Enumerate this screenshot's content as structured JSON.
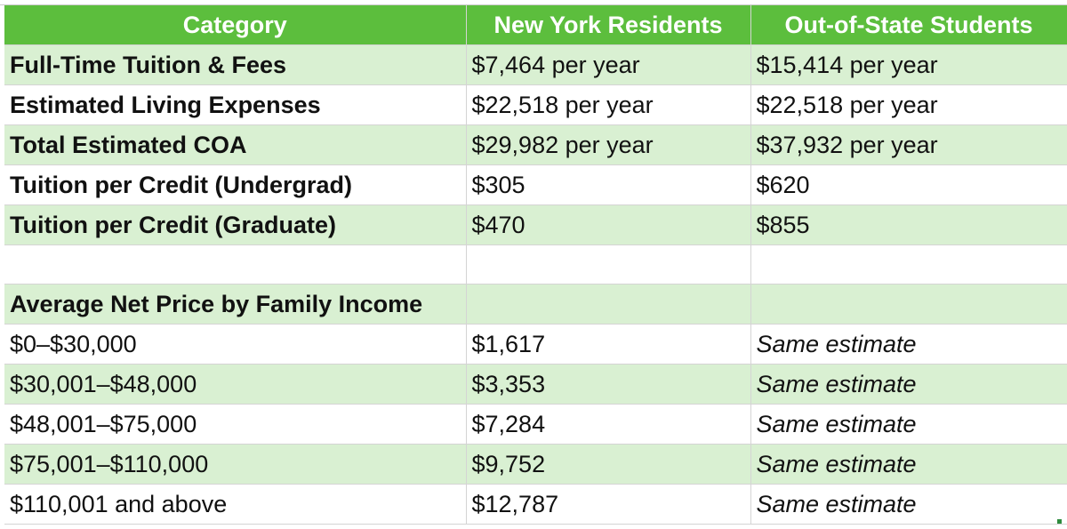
{
  "header": {
    "category": "Category",
    "ny": "New York Residents",
    "oos": "Out-of-State Students"
  },
  "costs": [
    {
      "label": "Full-Time Tuition & Fees",
      "ny": "$7,464 per year",
      "oos": "$15,414 per year"
    },
    {
      "label": "Estimated Living Expenses",
      "ny": "$22,518 per year",
      "oos": "$22,518 per year"
    },
    {
      "label": "Total Estimated COA",
      "ny": "$29,982 per year",
      "oos": "$37,932 per year"
    },
    {
      "label": "Tuition per Credit (Undergrad)",
      "ny": "$305",
      "oos": "$620"
    },
    {
      "label": "Tuition per Credit (Graduate)",
      "ny": "$470",
      "oos": "$855"
    }
  ],
  "net_price": {
    "section_title": "Average Net Price by Family Income",
    "rows": [
      {
        "income": "$0–$30,000",
        "ny": "$1,617",
        "oos": "Same estimate"
      },
      {
        "income": "$30,001–$48,000",
        "ny": "$3,353",
        "oos": "Same estimate"
      },
      {
        "income": "$48,001–$75,000",
        "ny": "$7,284",
        "oos": "Same estimate"
      },
      {
        "income": "$75,001–$110,000",
        "ny": "$9,752",
        "oos": "Same estimate"
      },
      {
        "income": "$110,001 and above",
        "ny": "$12,787",
        "oos": "Same estimate"
      }
    ]
  },
  "colors": {
    "header_bg": "#5cbe3d",
    "band_green": "#d9f0d2",
    "band_white": "#ffffff"
  }
}
